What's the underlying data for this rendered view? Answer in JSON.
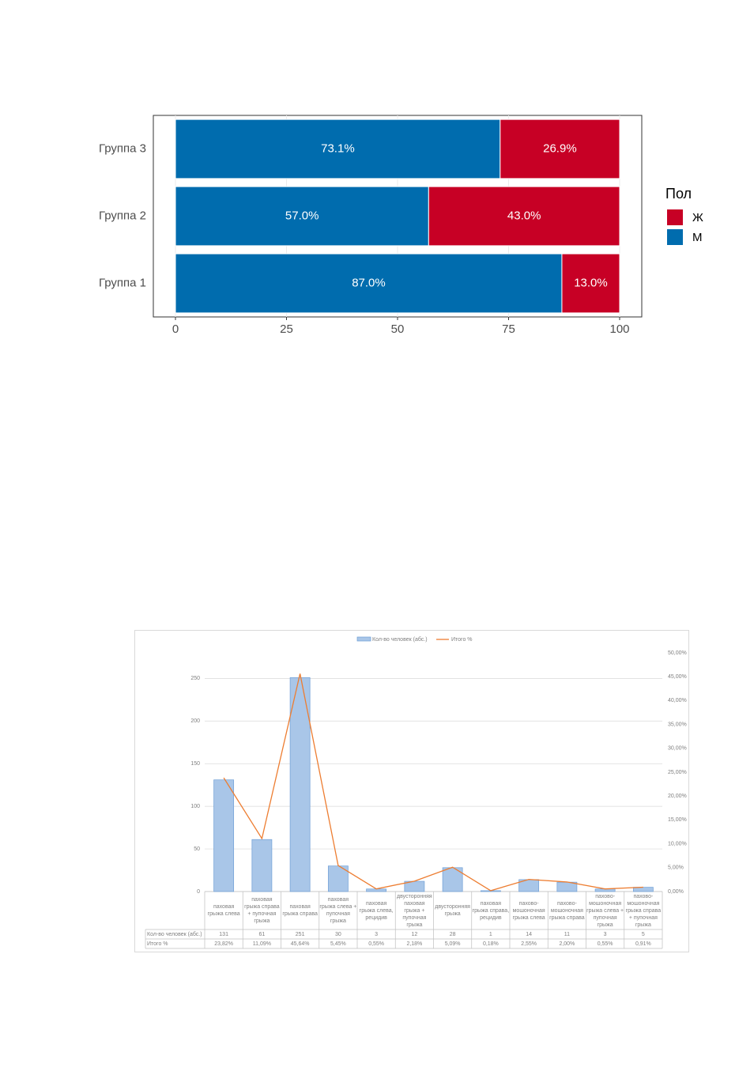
{
  "chart_data": [
    {
      "type": "bar",
      "orientation": "horizontal",
      "stacked": true,
      "categories": [
        "Группа 1",
        "Группа 2",
        "Группа 3"
      ],
      "series": [
        {
          "name": "Ж",
          "color": "#c70025",
          "values": [
            13.0,
            43.0,
            26.9
          ],
          "value_labels": [
            "13.0%",
            "43.0%",
            "26.9%"
          ]
        },
        {
          "name": "М",
          "color": "#006cae",
          "values": [
            87.0,
            57.0,
            73.1
          ],
          "value_labels": [
            "87.0%",
            "57.0%",
            "73.1%"
          ]
        }
      ],
      "xlim": [
        0,
        100
      ],
      "xticks": [
        0,
        25,
        50,
        75,
        100
      ],
      "grid": true,
      "legend_title": "Пол",
      "legend": "right"
    },
    {
      "type": "combo",
      "categories": [
        "паховая грыжа слева",
        "паховая грыжа справа + пупочная грыжа",
        "паховая грыжа справа",
        "паховая грыжа слева + пупочная грыжа",
        "паховая грыжа слева, рецидив",
        "двусторонняя паховая грыжа + пупочная грыжа",
        "двусторонняя грыжа",
        "паховая грыжа справа, рецидив",
        "пахово-мошоночная грыжа слева",
        "пахово-мошоночная грыжа справа",
        "пахово-мошоночная грыжа слева + пупочная грыжа",
        "пахово-мошоночная грыжа справа + пупочная грыжа"
      ],
      "series": [
        {
          "name": "Кол-во человек (абс.)",
          "type": "bar",
          "color": "#a9c6e8",
          "values": [
            131,
            61,
            251,
            30,
            3,
            12,
            28,
            1,
            14,
            11,
            3,
            5
          ]
        },
        {
          "name": "Итого %",
          "type": "line",
          "axis": "y2",
          "color": "#ed7d31",
          "values": [
            23.82,
            11.09,
            45.64,
            5.45,
            0.55,
            2.18,
            5.09,
            0.18,
            2.55,
            2.0,
            0.55,
            0.91
          ],
          "value_labels": [
            "23,82%",
            "11,09%",
            "45,64%",
            "5,45%",
            "0,55%",
            "2,18%",
            "5,09%",
            "0,18%",
            "2,55%",
            "2,00%",
            "0,55%",
            "0,91%"
          ]
        }
      ],
      "ylim": [
        0,
        280
      ],
      "yticks": [
        0,
        50,
        100,
        150,
        200,
        250
      ],
      "y2lim": [
        0,
        50
      ],
      "y2ticks": [
        {
          "value": 0,
          "label": "0,00%"
        },
        {
          "value": 5,
          "label": "5,00%"
        },
        {
          "value": 10,
          "label": "10,00%"
        },
        {
          "value": 15,
          "label": "15,00%"
        },
        {
          "value": 20,
          "label": "20,00%"
        },
        {
          "value": 25,
          "label": "25,00%"
        },
        {
          "value": 30,
          "label": "30,00%"
        },
        {
          "value": 35,
          "label": "35,00%"
        },
        {
          "value": 40,
          "label": "40,00%"
        },
        {
          "value": 45,
          "label": "45,00%"
        },
        {
          "value": 50,
          "label": "50,00%"
        }
      ],
      "grid": true,
      "legend": "top",
      "data_table": true
    }
  ]
}
